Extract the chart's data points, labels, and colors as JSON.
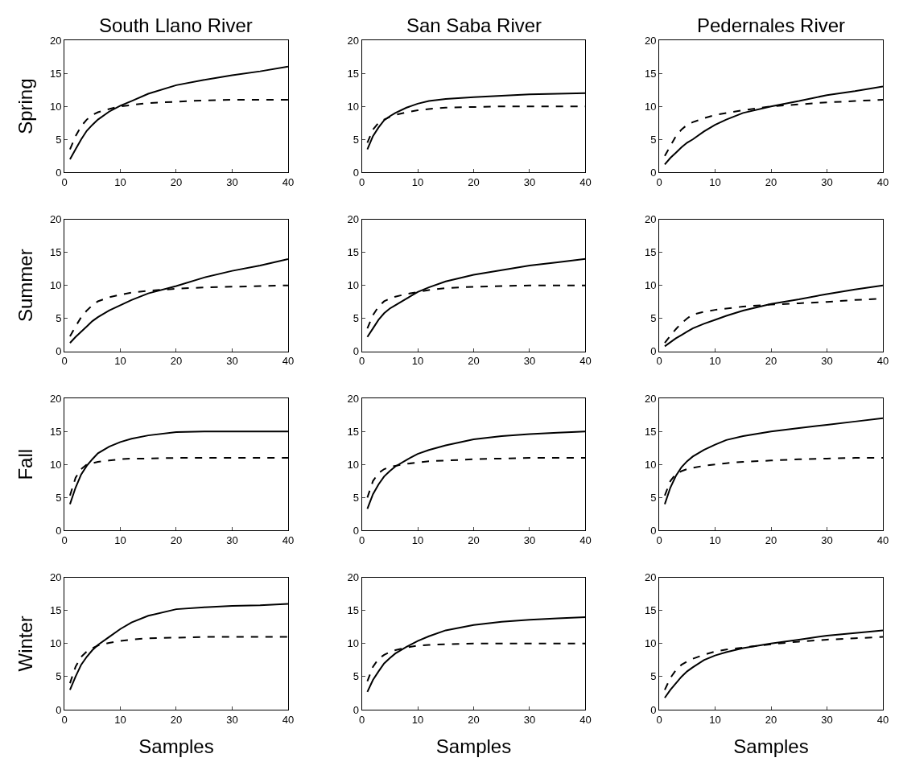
{
  "chart_data": [
    {
      "type": "line",
      "title": "South Llano River",
      "ylabel": "Spring",
      "x": [
        1,
        2,
        3,
        4,
        5,
        6,
        8,
        10,
        12,
        15,
        20,
        25,
        30,
        35,
        40
      ],
      "xlim": [
        0,
        40
      ],
      "ylim": [
        0,
        20
      ],
      "xticks": [
        0,
        10,
        20,
        30,
        40
      ],
      "yticks": [
        0,
        5,
        10,
        15,
        20
      ],
      "grid": false,
      "legend": false,
      "marker": "none",
      "series": [
        {
          "color": "#000000",
          "line_style": "solid",
          "values": [
            2,
            3.5,
            5,
            6.3,
            7.2,
            8,
            9.2,
            10.1,
            10.8,
            11.9,
            13.2,
            14,
            14.7,
            15.3,
            16
          ]
        },
        {
          "color": "#000000",
          "line_style": "dashed",
          "values": [
            3.5,
            5.5,
            7,
            8,
            8.7,
            9.1,
            9.6,
            10,
            10.2,
            10.5,
            10.7,
            10.9,
            11,
            11,
            11
          ]
        }
      ]
    },
    {
      "type": "line",
      "title": "San Saba River",
      "x": [
        1,
        2,
        3,
        4,
        5,
        6,
        8,
        10,
        12,
        15,
        20,
        25,
        30,
        35,
        40
      ],
      "xlim": [
        0,
        40
      ],
      "ylim": [
        0,
        20
      ],
      "xticks": [
        0,
        10,
        20,
        30,
        40
      ],
      "yticks": [
        0,
        5,
        10,
        15,
        20
      ],
      "grid": false,
      "legend": false,
      "marker": "none",
      "series": [
        {
          "color": "#000000",
          "line_style": "solid",
          "values": [
            3.5,
            5.5,
            6.8,
            7.9,
            8.5,
            9,
            9.8,
            10.4,
            10.8,
            11.1,
            11.4,
            11.6,
            11.8,
            11.9,
            12
          ]
        },
        {
          "color": "#000000",
          "line_style": "dashed",
          "values": [
            4.5,
            6.5,
            7.5,
            8,
            8.4,
            8.7,
            9.1,
            9.4,
            9.6,
            9.8,
            9.9,
            10,
            10,
            10,
            10
          ]
        }
      ]
    },
    {
      "type": "line",
      "title": "Pedernales River",
      "x": [
        1,
        2,
        3,
        4,
        5,
        6,
        8,
        10,
        12,
        15,
        20,
        25,
        30,
        35,
        40
      ],
      "xlim": [
        0,
        40
      ],
      "ylim": [
        0,
        20
      ],
      "xticks": [
        0,
        10,
        20,
        30,
        40
      ],
      "yticks": [
        0,
        5,
        10,
        15,
        20
      ],
      "grid": false,
      "legend": false,
      "marker": "none",
      "series": [
        {
          "color": "#000000",
          "line_style": "solid",
          "values": [
            1.2,
            2.2,
            3,
            3.8,
            4.5,
            5,
            6.2,
            7.2,
            8,
            9,
            10,
            10.8,
            11.7,
            12.3,
            13
          ]
        },
        {
          "color": "#000000",
          "line_style": "dashed",
          "values": [
            2.5,
            4,
            5.5,
            6.5,
            7.2,
            7.6,
            8.2,
            8.7,
            9,
            9.4,
            10,
            10.3,
            10.6,
            10.8,
            11
          ]
        }
      ]
    },
    {
      "type": "line",
      "ylabel": "Summer",
      "x": [
        1,
        2,
        3,
        4,
        5,
        6,
        8,
        10,
        12,
        15,
        20,
        25,
        30,
        35,
        40
      ],
      "xlim": [
        0,
        40
      ],
      "ylim": [
        0,
        20
      ],
      "xticks": [
        0,
        10,
        20,
        30,
        40
      ],
      "yticks": [
        0,
        5,
        10,
        15,
        20
      ],
      "grid": false,
      "legend": false,
      "marker": "none",
      "series": [
        {
          "color": "#000000",
          "line_style": "solid",
          "values": [
            1.3,
            2.2,
            3,
            3.8,
            4.6,
            5.2,
            6.2,
            7,
            7.8,
            8.8,
            9.9,
            11.2,
            12.2,
            13,
            14
          ]
        },
        {
          "color": "#000000",
          "line_style": "dashed",
          "values": [
            2.3,
            3.8,
            5.2,
            6.2,
            7,
            7.6,
            8.2,
            8.6,
            8.9,
            9.2,
            9.5,
            9.7,
            9.8,
            9.9,
            10
          ]
        }
      ]
    },
    {
      "type": "line",
      "x": [
        1,
        2,
        3,
        4,
        5,
        6,
        8,
        10,
        12,
        15,
        20,
        25,
        30,
        35,
        40
      ],
      "xlim": [
        0,
        40
      ],
      "ylim": [
        0,
        20
      ],
      "xticks": [
        0,
        10,
        20,
        30,
        40
      ],
      "yticks": [
        0,
        5,
        10,
        15,
        20
      ],
      "grid": false,
      "legend": false,
      "marker": "none",
      "series": [
        {
          "color": "#000000",
          "line_style": "solid",
          "values": [
            2.2,
            3.5,
            4.8,
            5.8,
            6.5,
            7,
            8,
            9,
            9.7,
            10.6,
            11.6,
            12.3,
            13,
            13.5,
            14
          ]
        },
        {
          "color": "#000000",
          "line_style": "dashed",
          "values": [
            3.5,
            5.5,
            6.8,
            7.6,
            8,
            8.3,
            8.7,
            9,
            9.3,
            9.6,
            9.8,
            9.9,
            10,
            10,
            10
          ]
        }
      ]
    },
    {
      "type": "line",
      "x": [
        1,
        2,
        3,
        4,
        5,
        6,
        8,
        10,
        12,
        15,
        20,
        25,
        30,
        35,
        40
      ],
      "xlim": [
        0,
        40
      ],
      "ylim": [
        0,
        20
      ],
      "xticks": [
        0,
        10,
        20,
        30,
        40
      ],
      "yticks": [
        0,
        5,
        10,
        15,
        20
      ],
      "grid": false,
      "legend": false,
      "marker": "none",
      "series": [
        {
          "color": "#000000",
          "line_style": "solid",
          "values": [
            0.8,
            1.4,
            2,
            2.5,
            3,
            3.5,
            4.2,
            4.8,
            5.4,
            6.2,
            7.2,
            7.9,
            8.7,
            9.4,
            10
          ]
        },
        {
          "color": "#000000",
          "line_style": "dashed",
          "values": [
            1.3,
            2.4,
            3.4,
            4.3,
            5,
            5.6,
            6,
            6.3,
            6.5,
            6.8,
            7.1,
            7.3,
            7.5,
            7.8,
            8
          ]
        }
      ]
    },
    {
      "type": "line",
      "ylabel": "Fall",
      "x": [
        1,
        2,
        3,
        4,
        5,
        6,
        8,
        10,
        12,
        15,
        20,
        25,
        30,
        35,
        40
      ],
      "xlim": [
        0,
        40
      ],
      "ylim": [
        0,
        20
      ],
      "xticks": [
        0,
        10,
        20,
        30,
        40
      ],
      "yticks": [
        0,
        5,
        10,
        15,
        20
      ],
      "grid": false,
      "legend": false,
      "marker": "none",
      "series": [
        {
          "color": "#000000",
          "line_style": "solid",
          "values": [
            4,
            6.5,
            8.5,
            9.8,
            10.8,
            11.7,
            12.7,
            13.4,
            13.9,
            14.4,
            14.9,
            15,
            15,
            15,
            15
          ]
        },
        {
          "color": "#000000",
          "line_style": "dashed",
          "values": [
            5.3,
            8,
            9.3,
            10,
            10.2,
            10.4,
            10.6,
            10.8,
            10.9,
            10.9,
            11,
            11,
            11,
            11,
            11
          ]
        }
      ]
    },
    {
      "type": "line",
      "x": [
        1,
        2,
        3,
        4,
        5,
        6,
        8,
        10,
        12,
        15,
        20,
        25,
        30,
        35,
        40
      ],
      "xlim": [
        0,
        40
      ],
      "ylim": [
        0,
        20
      ],
      "xticks": [
        0,
        10,
        20,
        30,
        40
      ],
      "yticks": [
        0,
        5,
        10,
        15,
        20
      ],
      "grid": false,
      "legend": false,
      "marker": "none",
      "series": [
        {
          "color": "#000000",
          "line_style": "solid",
          "values": [
            3.3,
            5.5,
            7,
            8.2,
            9,
            9.7,
            10.7,
            11.6,
            12.2,
            12.9,
            13.8,
            14.3,
            14.6,
            14.8,
            15
          ]
        },
        {
          "color": "#000000",
          "line_style": "dashed",
          "values": [
            5,
            7.5,
            8.7,
            9.3,
            9.6,
            9.8,
            10.1,
            10.3,
            10.5,
            10.6,
            10.8,
            10.9,
            11,
            11,
            11
          ]
        }
      ]
    },
    {
      "type": "line",
      "x": [
        1,
        2,
        3,
        4,
        5,
        6,
        8,
        10,
        12,
        15,
        20,
        25,
        30,
        35,
        40
      ],
      "xlim": [
        0,
        40
      ],
      "ylim": [
        0,
        20
      ],
      "xticks": [
        0,
        10,
        20,
        30,
        40
      ],
      "yticks": [
        0,
        5,
        10,
        15,
        20
      ],
      "grid": false,
      "legend": false,
      "marker": "none",
      "series": [
        {
          "color": "#000000",
          "line_style": "solid",
          "values": [
            4,
            6.5,
            8.3,
            9.6,
            10.5,
            11.2,
            12.2,
            13,
            13.7,
            14.3,
            15,
            15.5,
            16,
            16.5,
            17
          ]
        },
        {
          "color": "#000000",
          "line_style": "dashed",
          "values": [
            5.3,
            7.5,
            8.6,
            9,
            9.3,
            9.5,
            9.8,
            10,
            10.2,
            10.4,
            10.6,
            10.8,
            10.9,
            11,
            11
          ]
        }
      ]
    },
    {
      "type": "line",
      "ylabel": "Winter",
      "xlabel": "Samples",
      "x": [
        1,
        2,
        3,
        4,
        5,
        6,
        8,
        10,
        12,
        15,
        20,
        25,
        30,
        35,
        40
      ],
      "xlim": [
        0,
        40
      ],
      "ylim": [
        0,
        20
      ],
      "xticks": [
        0,
        10,
        20,
        30,
        40
      ],
      "yticks": [
        0,
        5,
        10,
        15,
        20
      ],
      "grid": false,
      "legend": false,
      "marker": "none",
      "series": [
        {
          "color": "#000000",
          "line_style": "solid",
          "values": [
            3,
            5,
            6.8,
            8,
            9,
            9.8,
            11,
            12.2,
            13.2,
            14.2,
            15.2,
            15.5,
            15.7,
            15.8,
            16
          ]
        },
        {
          "color": "#000000",
          "line_style": "dashed",
          "values": [
            4,
            6.5,
            8,
            8.8,
            9.3,
            9.7,
            10.1,
            10.4,
            10.6,
            10.8,
            10.9,
            11,
            11,
            11,
            11
          ]
        }
      ]
    },
    {
      "type": "line",
      "xlabel": "Samples",
      "x": [
        1,
        2,
        3,
        4,
        5,
        6,
        8,
        10,
        12,
        15,
        20,
        25,
        30,
        35,
        40
      ],
      "xlim": [
        0,
        40
      ],
      "ylim": [
        0,
        20
      ],
      "xticks": [
        0,
        10,
        20,
        30,
        40
      ],
      "yticks": [
        0,
        5,
        10,
        15,
        20
      ],
      "grid": false,
      "legend": false,
      "marker": "none",
      "series": [
        {
          "color": "#000000",
          "line_style": "solid",
          "values": [
            2.7,
            4.5,
            5.8,
            7,
            7.8,
            8.5,
            9.5,
            10.4,
            11.1,
            12,
            12.8,
            13.3,
            13.6,
            13.8,
            14
          ]
        },
        {
          "color": "#000000",
          "line_style": "dashed",
          "values": [
            4.3,
            6.5,
            7.7,
            8.3,
            8.7,
            9,
            9.4,
            9.7,
            9.8,
            9.9,
            10,
            10,
            10,
            10,
            10
          ]
        }
      ]
    },
    {
      "type": "line",
      "xlabel": "Samples",
      "x": [
        1,
        2,
        3,
        4,
        5,
        6,
        8,
        10,
        12,
        15,
        20,
        25,
        30,
        35,
        40
      ],
      "xlim": [
        0,
        40
      ],
      "ylim": [
        0,
        20
      ],
      "xticks": [
        0,
        10,
        20,
        30,
        40
      ],
      "yticks": [
        0,
        5,
        10,
        15,
        20
      ],
      "grid": false,
      "legend": false,
      "marker": "none",
      "series": [
        {
          "color": "#000000",
          "line_style": "solid",
          "values": [
            1.8,
            3,
            4,
            5,
            5.8,
            6.4,
            7.5,
            8.2,
            8.7,
            9.3,
            10,
            10.6,
            11.2,
            11.6,
            12
          ]
        },
        {
          "color": "#000000",
          "line_style": "dashed",
          "values": [
            3,
            4.8,
            6,
            6.8,
            7.3,
            7.7,
            8.3,
            8.8,
            9.1,
            9.4,
            9.9,
            10.3,
            10.6,
            10.8,
            11
          ]
        }
      ]
    }
  ]
}
